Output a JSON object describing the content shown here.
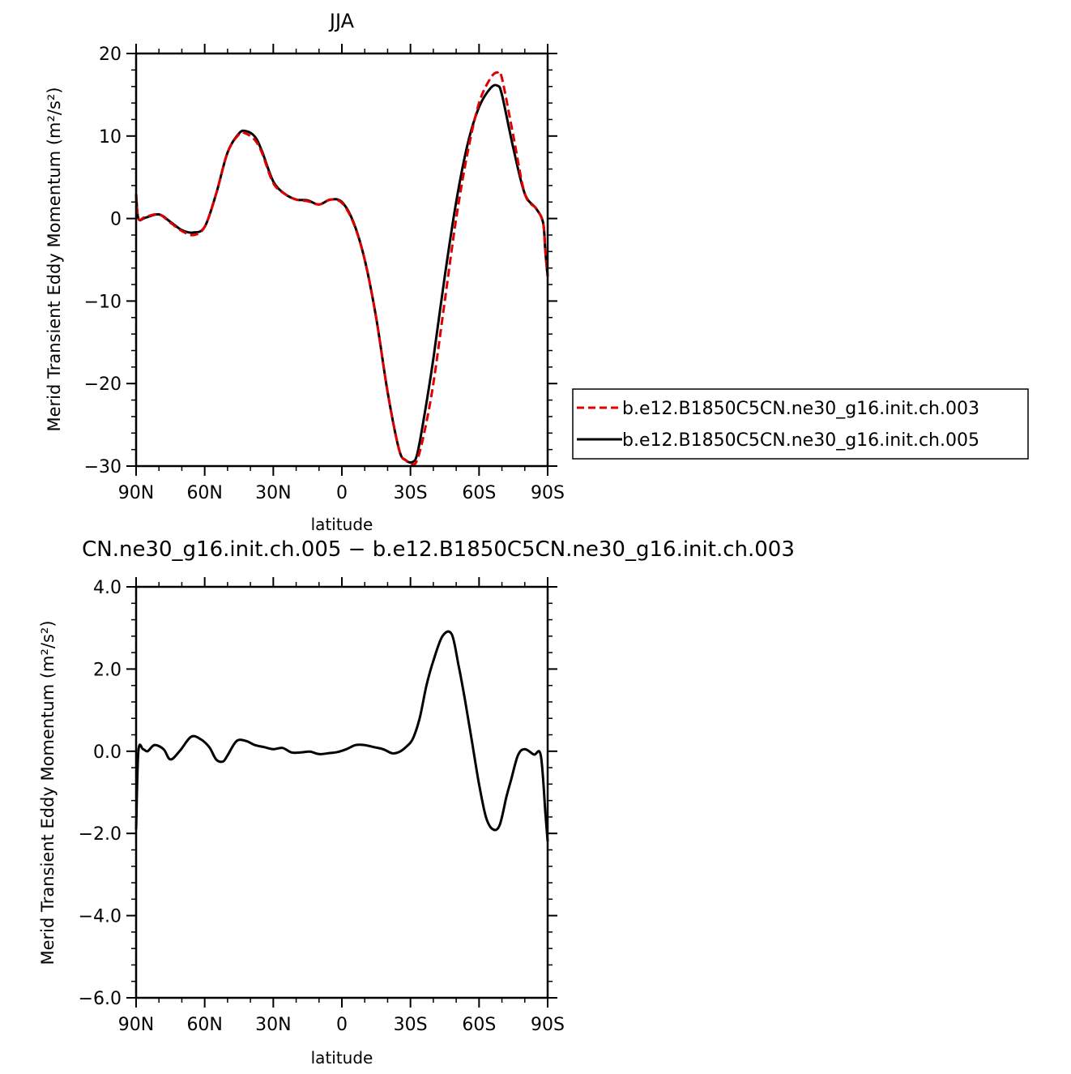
{
  "chart_data": [
    {
      "type": "line",
      "title": "JJA",
      "xlabel": "latitude",
      "ylabel": "Merid Transient Eddy Momentum (m²/s²)",
      "xlim": [
        90,
        -90
      ],
      "ylim": [
        -30,
        20
      ],
      "x_ticks": [
        90,
        60,
        30,
        0,
        -30,
        -60,
        -90
      ],
      "x_tick_labels": [
        "90N",
        "60N",
        "30N",
        "0",
        "30S",
        "60S",
        "90S"
      ],
      "y_ticks": [
        20,
        10,
        0,
        -10,
        -20,
        -30
      ],
      "y_tick_labels": [
        "20",
        "10",
        "0",
        "−10",
        "−20",
        "−30"
      ],
      "legend_position": "right",
      "series": [
        {
          "name": "b.e12.B1850C5CN.ne30_g16.init.ch.003",
          "color": "#e00000",
          "dash": "dashed",
          "x": [
            90,
            89,
            86,
            80,
            75,
            70,
            65,
            60,
            55,
            50,
            45,
            42,
            38,
            35,
            30,
            25,
            20,
            15,
            10,
            5,
            0,
            -5,
            -10,
            -15,
            -20,
            -25,
            -28,
            -31,
            -33,
            -36,
            -40,
            -45,
            -50,
            -55,
            -60,
            -65,
            -68,
            -70,
            -75,
            -80,
            -85,
            -88,
            -89,
            -90
          ],
          "y": [
            3.0,
            0.0,
            0.2,
            0.5,
            -0.5,
            -1.5,
            -2.0,
            -1.0,
            3.0,
            8.0,
            10.2,
            10.3,
            9.5,
            8.0,
            4.3,
            3.0,
            2.3,
            2.1,
            1.7,
            2.3,
            1.9,
            -0.5,
            -5.0,
            -12.0,
            -21.0,
            -28.0,
            -29.3,
            -29.8,
            -29.2,
            -26.0,
            -20.0,
            -10.0,
            0.0,
            8.0,
            14.0,
            17.0,
            17.7,
            17.0,
            10.0,
            3.0,
            1.2,
            -0.5,
            -4.0,
            -7.0
          ]
        },
        {
          "name": "b.e12.B1850C5CN.ne30_g16.init.ch.005",
          "color": "#000000",
          "dash": "solid",
          "x": [
            90,
            89,
            86,
            80,
            75,
            70,
            65,
            60,
            55,
            50,
            45,
            42,
            38,
            35,
            30,
            25,
            20,
            15,
            10,
            5,
            0,
            -5,
            -10,
            -15,
            -20,
            -25,
            -28,
            -31,
            -33,
            -36,
            -40,
            -45,
            -50,
            -55,
            -60,
            -65,
            -68,
            -70,
            -75,
            -80,
            -85,
            -88,
            -89,
            -90
          ],
          "y": [
            3.0,
            0.0,
            0.1,
            0.5,
            -0.4,
            -1.4,
            -1.7,
            -1.0,
            3.0,
            8.0,
            10.3,
            10.6,
            9.9,
            8.2,
            4.5,
            3.0,
            2.3,
            2.2,
            1.7,
            2.3,
            2.0,
            -0.4,
            -5.0,
            -12.0,
            -21.0,
            -28.0,
            -29.3,
            -29.5,
            -28.5,
            -24.0,
            -17.0,
            -7.0,
            2.0,
            9.0,
            13.5,
            15.8,
            16.1,
            15.0,
            8.5,
            3.0,
            1.2,
            -0.5,
            -4.0,
            -7.0
          ]
        }
      ]
    },
    {
      "type": "line",
      "title": "CN.ne30_g16.init.ch.005 − b.e12.B1850C5CN.ne30_g16.init.ch.003",
      "xlabel": "latitude",
      "ylabel": "Merid Transient Eddy Momentum (m²/s²)",
      "xlim": [
        90,
        -90
      ],
      "ylim": [
        -6,
        4
      ],
      "x_ticks": [
        90,
        60,
        30,
        0,
        -30,
        -60,
        -90
      ],
      "x_tick_labels": [
        "90N",
        "60N",
        "30N",
        "0",
        "30S",
        "60S",
        "90S"
      ],
      "y_ticks": [
        4,
        2,
        0,
        -2,
        -4,
        -6
      ],
      "y_tick_labels": [
        "4.0",
        "2.0",
        "0.0",
        "−2.0",
        "−4.0",
        "−6.0"
      ],
      "series": [
        {
          "color": "#000000",
          "dash": "solid",
          "x": [
            90,
            89,
            87,
            85,
            82,
            78,
            75,
            71,
            66,
            62,
            58,
            55,
            52,
            50,
            46,
            42,
            38,
            34,
            30,
            26,
            22,
            18,
            14,
            10,
            6,
            2,
            -2,
            -6,
            -10,
            -14,
            -18,
            -22,
            -25,
            -28,
            -31,
            -34,
            -37,
            -40,
            -44,
            -48,
            -51,
            -54,
            -57,
            -60,
            -63,
            -66,
            -69,
            -72,
            -74,
            -77,
            -80,
            -84,
            -87,
            -89,
            -90
          ],
          "y": [
            -1.9,
            0.0,
            0.05,
            0.0,
            0.15,
            0.05,
            -0.2,
            0.0,
            0.35,
            0.3,
            0.1,
            -0.2,
            -0.25,
            -0.1,
            0.25,
            0.25,
            0.15,
            0.1,
            0.05,
            0.08,
            -0.03,
            -0.03,
            -0.01,
            -0.07,
            -0.05,
            -0.02,
            0.05,
            0.15,
            0.15,
            0.1,
            0.05,
            -0.05,
            -0.02,
            0.1,
            0.3,
            0.8,
            1.6,
            2.2,
            2.8,
            2.85,
            2.1,
            1.2,
            0.2,
            -0.8,
            -1.6,
            -1.9,
            -1.8,
            -1.1,
            -0.7,
            -0.1,
            0.05,
            -0.08,
            -0.1,
            -1.5,
            -2.2
          ]
        }
      ]
    }
  ]
}
